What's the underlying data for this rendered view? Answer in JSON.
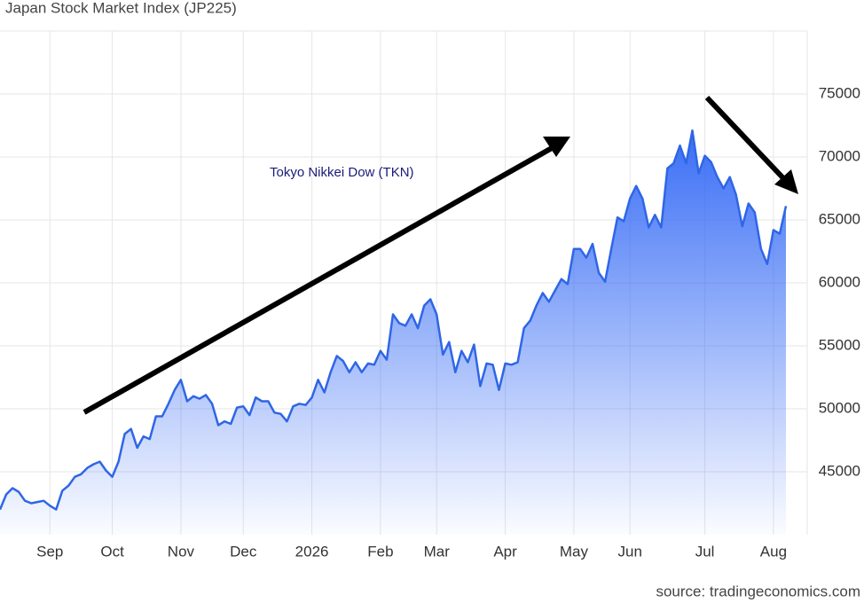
{
  "chart_data": {
    "type": "area",
    "title": "Japan Stock Market Index (JP225)",
    "annotation": "Tokyo Nikkei Dow (TKN)",
    "source": "source: tradingeconomics.com",
    "color": "#2f66e6",
    "categories": [
      null,
      null,
      null,
      null,
      null,
      null,
      null,
      null,
      "Sep",
      null,
      null,
      null,
      null,
      null,
      null,
      null,
      null,
      null,
      "Oct",
      null,
      null,
      null,
      null,
      null,
      null,
      null,
      null,
      null,
      null,
      "Nov",
      null,
      null,
      null,
      null,
      null,
      null,
      null,
      null,
      null,
      "Dec",
      null,
      null,
      null,
      null,
      null,
      null,
      null,
      null,
      null,
      null,
      "2026",
      null,
      null,
      null,
      null,
      null,
      null,
      null,
      null,
      null,
      null,
      "Feb",
      null,
      null,
      null,
      null,
      null,
      null,
      null,
      null,
      "Mar",
      null,
      null,
      null,
      null,
      null,
      null,
      null,
      null,
      null,
      null,
      "Apr",
      null,
      null,
      null,
      null,
      null,
      null,
      null,
      null,
      null,
      null,
      "May",
      null,
      null,
      null,
      null,
      null,
      null,
      null,
      null,
      "Jun",
      null,
      null,
      null,
      null,
      null,
      null,
      null,
      null,
      null,
      null,
      null,
      "Jul",
      null,
      null,
      null,
      null,
      null,
      null,
      null,
      null,
      null,
      null,
      "Aug",
      null,
      null
    ],
    "values": [
      42000,
      43200,
      43700,
      43400,
      42700,
      42500,
      42600,
      42700,
      42300,
      42000,
      43500,
      43900,
      44600,
      44800,
      45300,
      45600,
      45800,
      45100,
      44600,
      45800,
      48000,
      48400,
      46900,
      47800,
      47600,
      49400,
      49400,
      50400,
      51500,
      52300,
      50600,
      51000,
      50800,
      51100,
      50400,
      48700,
      49000,
      48800,
      50100,
      50200,
      49500,
      50900,
      50600,
      50600,
      49700,
      49600,
      49000,
      50200,
      50400,
      50300,
      50900,
      52300,
      51300,
      52900,
      54200,
      53800,
      52900,
      53700,
      52900,
      53600,
      53500,
      54600,
      53900,
      57500,
      56800,
      56600,
      57500,
      56400,
      58200,
      58700,
      57500,
      54300,
      55300,
      52900,
      54600,
      53700,
      55100,
      51800,
      53600,
      53500,
      51500,
      53600,
      53500,
      53700,
      56400,
      57000,
      58200,
      59200,
      58500,
      59400,
      60300,
      59900,
      62700,
      62700,
      62000,
      63100,
      60800,
      60100,
      62700,
      65200,
      64900,
      66700,
      67700,
      66700,
      64400,
      65400,
      64400,
      69100,
      69500,
      70900,
      69500,
      72100,
      68700,
      70100,
      69600,
      68400,
      67500,
      68400,
      67000,
      64500,
      66300,
      65600,
      62700,
      61500,
      64200,
      63900,
      66100
    ],
    "ylim": [
      40000,
      80000
    ],
    "yticks": [
      45000,
      50000,
      55000,
      60000,
      65000,
      70000,
      75000
    ],
    "grid": true
  }
}
